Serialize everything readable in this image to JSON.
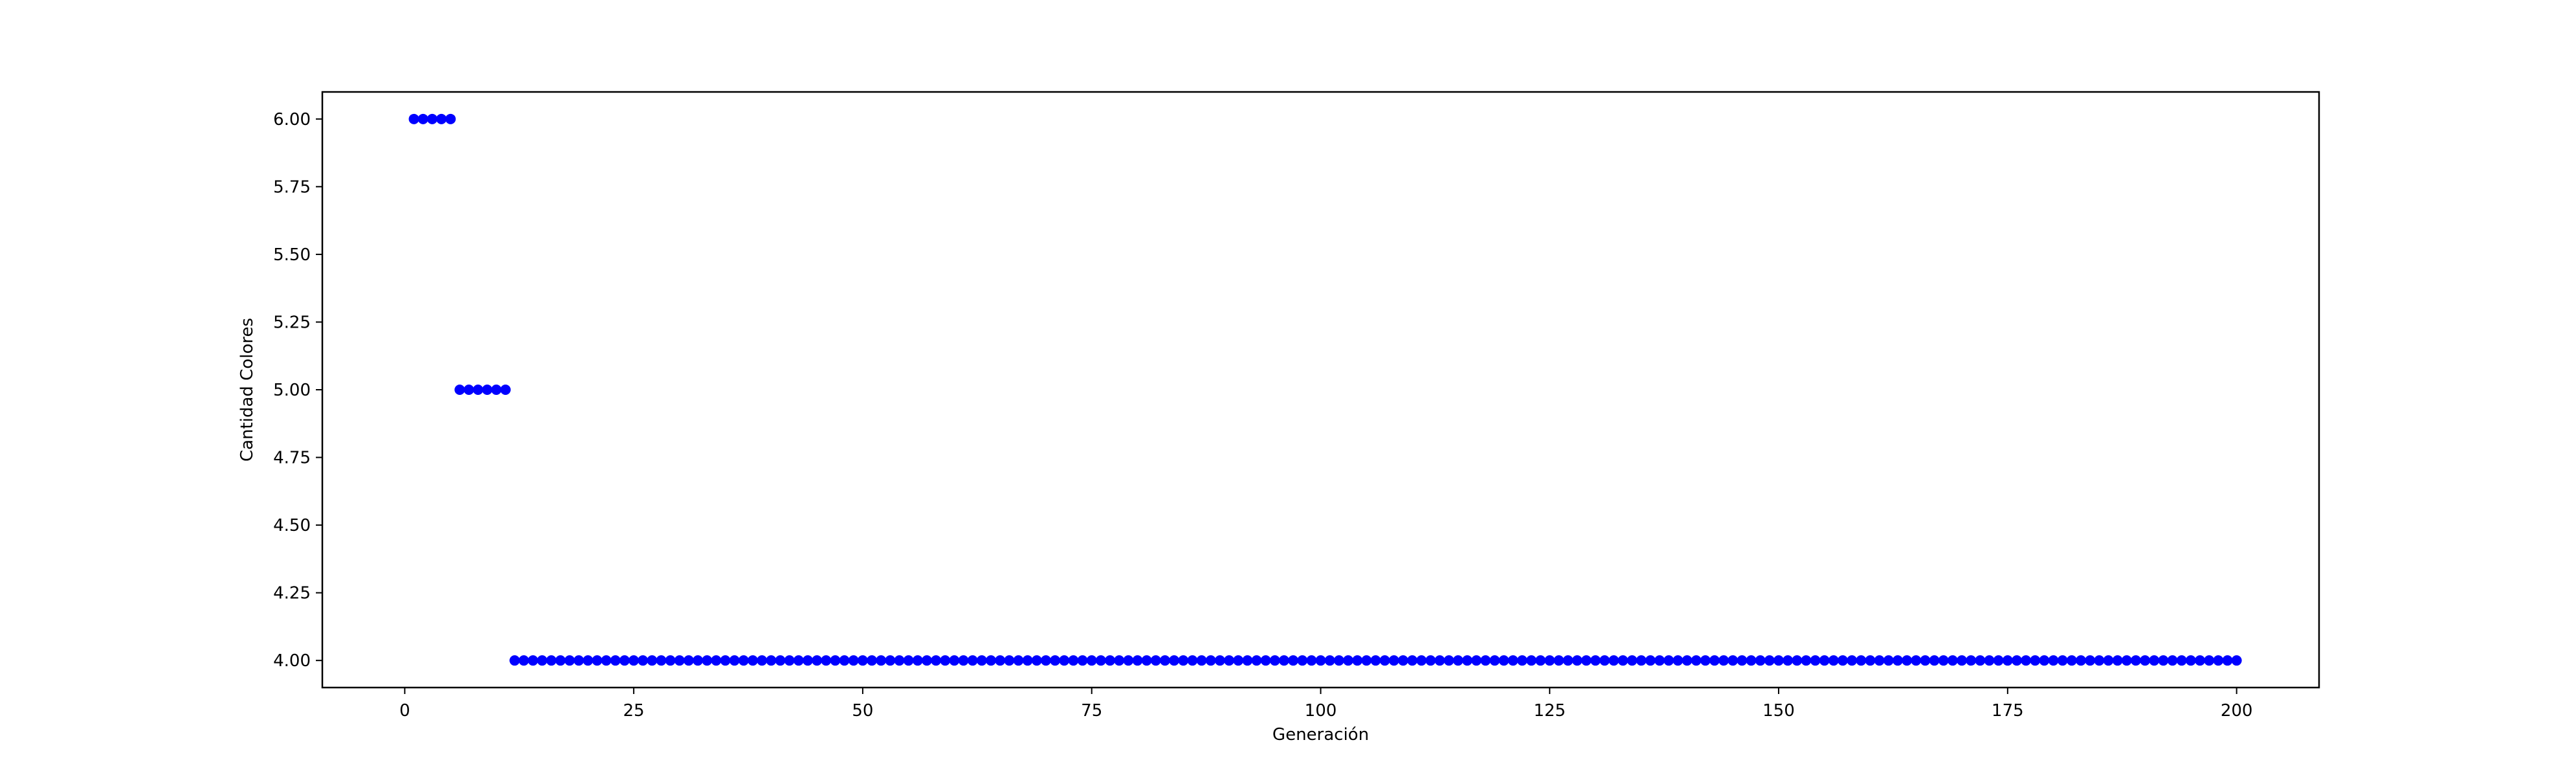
{
  "chart_data": {
    "type": "scatter",
    "title": "",
    "xlabel": "Generación",
    "ylabel": "Cantidad Colores",
    "xlim": [
      -9,
      209
    ],
    "ylim": [
      3.9,
      6.1
    ],
    "xticks": [
      0,
      25,
      50,
      75,
      100,
      125,
      150,
      175,
      200
    ],
    "xtick_labels": [
      "0",
      "25",
      "50",
      "75",
      "100",
      "125",
      "150",
      "175",
      "200"
    ],
    "yticks": [
      4.0,
      4.25,
      4.5,
      4.75,
      5.0,
      5.25,
      5.5,
      5.75,
      6.0
    ],
    "ytick_labels": [
      "4.00",
      "4.25",
      "4.50",
      "4.75",
      "5.00",
      "5.25",
      "5.50",
      "5.75",
      "6.00"
    ],
    "grid": false,
    "legend": false,
    "marker_color": "#0000ff",
    "series": [
      {
        "x_start": 1,
        "x_end": 200,
        "segments": [
          {
            "x_from": 1,
            "x_to": 5,
            "y": 6
          },
          {
            "x_from": 6,
            "x_to": 11,
            "y": 5
          },
          {
            "x_from": 12,
            "x_to": 200,
            "y": 4
          }
        ]
      }
    ]
  }
}
